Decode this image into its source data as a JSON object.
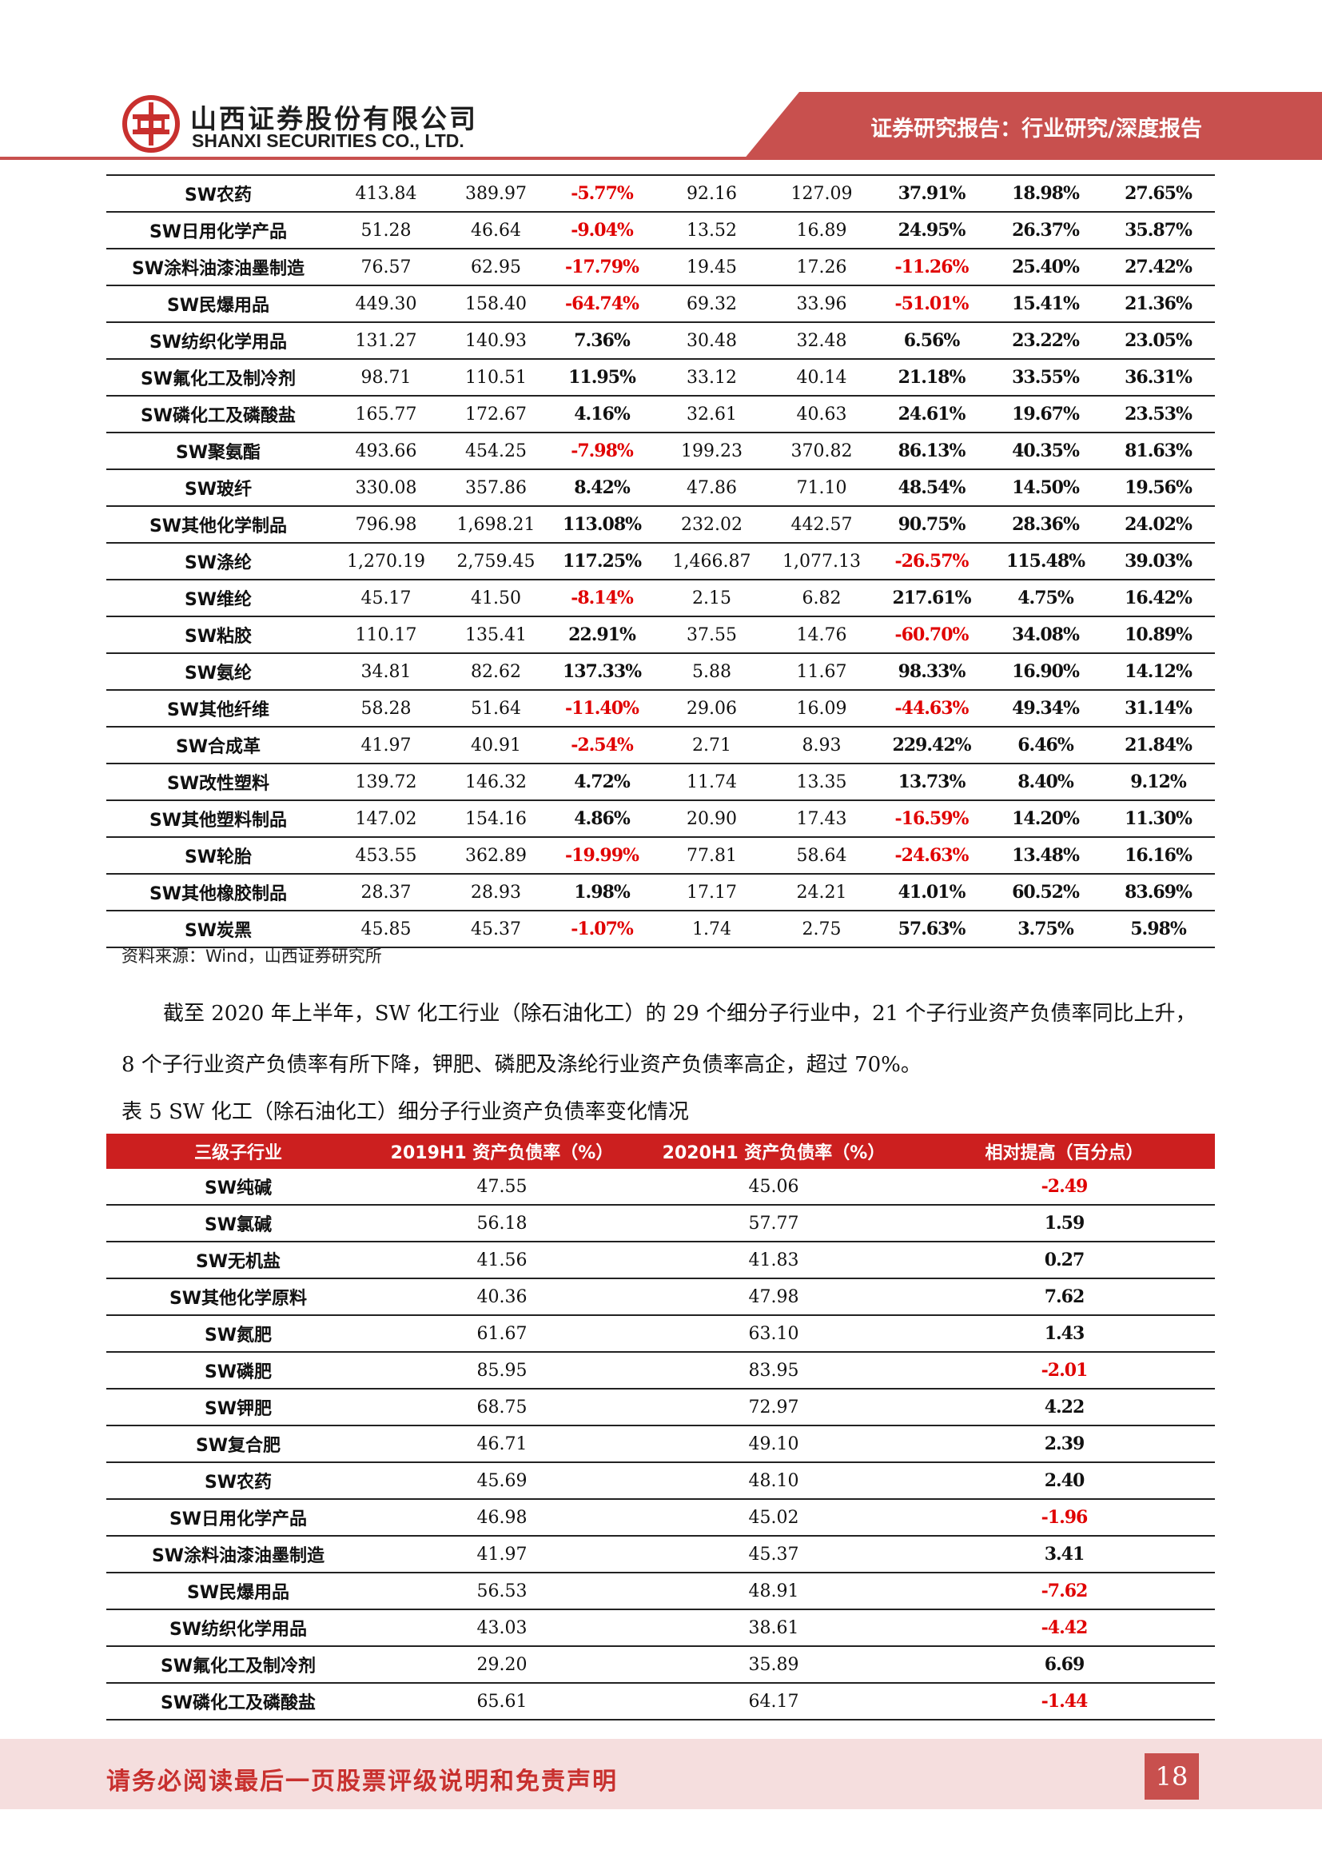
{
  "header": {
    "company_cn": "山西证券股份有限公司",
    "company_en": "SHANXI SECURITIES CO., LTD.",
    "report_type": "证券研究报告：行业研究/深度报告",
    "brand_color": "#c8504e"
  },
  "table4": {
    "rows": [
      [
        "SW农药",
        "413.84",
        "389.97",
        "-5.77%",
        "92.16",
        "127.09",
        "37.91%",
        "18.98%",
        "27.65%"
      ],
      [
        "SW日用化学产品",
        "51.28",
        "46.64",
        "-9.04%",
        "13.52",
        "16.89",
        "24.95%",
        "26.37%",
        "35.87%"
      ],
      [
        "SW涂料油漆油墨制造",
        "76.57",
        "62.95",
        "-17.79%",
        "19.45",
        "17.26",
        "-11.26%",
        "25.40%",
        "27.42%"
      ],
      [
        "SW民爆用品",
        "449.30",
        "158.40",
        "-64.74%",
        "69.32",
        "33.96",
        "-51.01%",
        "15.41%",
        "21.36%"
      ],
      [
        "SW纺织化学用品",
        "131.27",
        "140.93",
        "7.36%",
        "30.48",
        "32.48",
        "6.56%",
        "23.22%",
        "23.05%"
      ],
      [
        "SW氟化工及制冷剂",
        "98.71",
        "110.51",
        "11.95%",
        "33.12",
        "40.14",
        "21.18%",
        "33.55%",
        "36.31%"
      ],
      [
        "SW磷化工及磷酸盐",
        "165.77",
        "172.67",
        "4.16%",
        "32.61",
        "40.63",
        "24.61%",
        "19.67%",
        "23.53%"
      ],
      [
        "SW聚氨酯",
        "493.66",
        "454.25",
        "-7.98%",
        "199.23",
        "370.82",
        "86.13%",
        "40.35%",
        "81.63%"
      ],
      [
        "SW玻纤",
        "330.08",
        "357.86",
        "8.42%",
        "47.86",
        "71.10",
        "48.54%",
        "14.50%",
        "19.56%"
      ],
      [
        "SW其他化学制品",
        "796.98",
        "1,698.21",
        "113.08%",
        "232.02",
        "442.57",
        "90.75%",
        "28.36%",
        "24.02%"
      ],
      [
        "SW涤纶",
        "1,270.19",
        "2,759.45",
        "117.25%",
        "1,466.87",
        "1,077.13",
        "-26.57%",
        "115.48%",
        "39.03%"
      ],
      [
        "SW维纶",
        "45.17",
        "41.50",
        "-8.14%",
        "2.15",
        "6.82",
        "217.61%",
        "4.75%",
        "16.42%"
      ],
      [
        "SW粘胶",
        "110.17",
        "135.41",
        "22.91%",
        "37.55",
        "14.76",
        "-60.70%",
        "34.08%",
        "10.89%"
      ],
      [
        "SW氨纶",
        "34.81",
        "82.62",
        "137.33%",
        "5.88",
        "11.67",
        "98.33%",
        "16.90%",
        "14.12%"
      ],
      [
        "SW其他纤维",
        "58.28",
        "51.64",
        "-11.40%",
        "29.06",
        "16.09",
        "-44.63%",
        "49.34%",
        "31.14%"
      ],
      [
        "SW合成革",
        "41.97",
        "40.91",
        "-2.54%",
        "2.71",
        "8.93",
        "229.42%",
        "6.46%",
        "21.84%"
      ],
      [
        "SW改性塑料",
        "139.72",
        "146.32",
        "4.72%",
        "11.74",
        "13.35",
        "13.73%",
        "8.40%",
        "9.12%"
      ],
      [
        "SW其他塑料制品",
        "147.02",
        "154.16",
        "4.86%",
        "20.90",
        "17.43",
        "-16.59%",
        "14.20%",
        "11.30%"
      ],
      [
        "SW轮胎",
        "453.55",
        "362.89",
        "-19.99%",
        "77.81",
        "58.64",
        "-24.63%",
        "13.48%",
        "16.16%"
      ],
      [
        "SW其他橡胶制品",
        "28.37",
        "28.93",
        "1.98%",
        "17.17",
        "24.21",
        "41.01%",
        "60.52%",
        "83.69%"
      ],
      [
        "SW炭黑",
        "45.85",
        "45.37",
        "-1.07%",
        "1.74",
        "2.75",
        "57.63%",
        "3.75%",
        "5.98%"
      ]
    ]
  },
  "source_note": "资料来源：Wind，山西证券研究所",
  "paragraph": "截至 2020 年上半年，SW 化工行业（除石油化工）的 29 个细分子行业中，21 个子行业资产负债率同比上升，8 个子行业资产负债率有所下降，钾肥、磷肥及涤纶行业资产负债率高企，超过 70%。",
  "table5": {
    "title": "表 5 SW 化工（除石油化工）细分子行业资产负债率变化情况",
    "headers": [
      "三级子行业",
      "2019H1 资产负债率（%）",
      "2020H1 资产负债率（%）",
      "相对提高（百分点）"
    ],
    "rows": [
      [
        "SW纯碱",
        "47.55",
        "45.06",
        "-2.49"
      ],
      [
        "SW氯碱",
        "56.18",
        "57.77",
        "1.59"
      ],
      [
        "SW无机盐",
        "41.56",
        "41.83",
        "0.27"
      ],
      [
        "SW其他化学原料",
        "40.36",
        "47.98",
        "7.62"
      ],
      [
        "SW氮肥",
        "61.67",
        "63.10",
        "1.43"
      ],
      [
        "SW磷肥",
        "85.95",
        "83.95",
        "-2.01"
      ],
      [
        "SW钾肥",
        "68.75",
        "72.97",
        "4.22"
      ],
      [
        "SW复合肥",
        "46.71",
        "49.10",
        "2.39"
      ],
      [
        "SW农药",
        "45.69",
        "48.10",
        "2.40"
      ],
      [
        "SW日用化学产品",
        "46.98",
        "45.02",
        "-1.96"
      ],
      [
        "SW涂料油漆油墨制造",
        "41.97",
        "45.37",
        "3.41"
      ],
      [
        "SW民爆用品",
        "56.53",
        "48.91",
        "-7.62"
      ],
      [
        "SW纺织化学用品",
        "43.03",
        "38.61",
        "-4.42"
      ],
      [
        "SW氟化工及制冷剂",
        "29.20",
        "35.89",
        "6.69"
      ],
      [
        "SW磷化工及磷酸盐",
        "65.61",
        "64.17",
        "-1.44"
      ]
    ],
    "header_color": "#cc1f1f",
    "negative_color": "#e00000"
  },
  "footer": {
    "disclaimer": "请务必阅读最后一页股票评级说明和免责声明",
    "page_number": "18"
  }
}
